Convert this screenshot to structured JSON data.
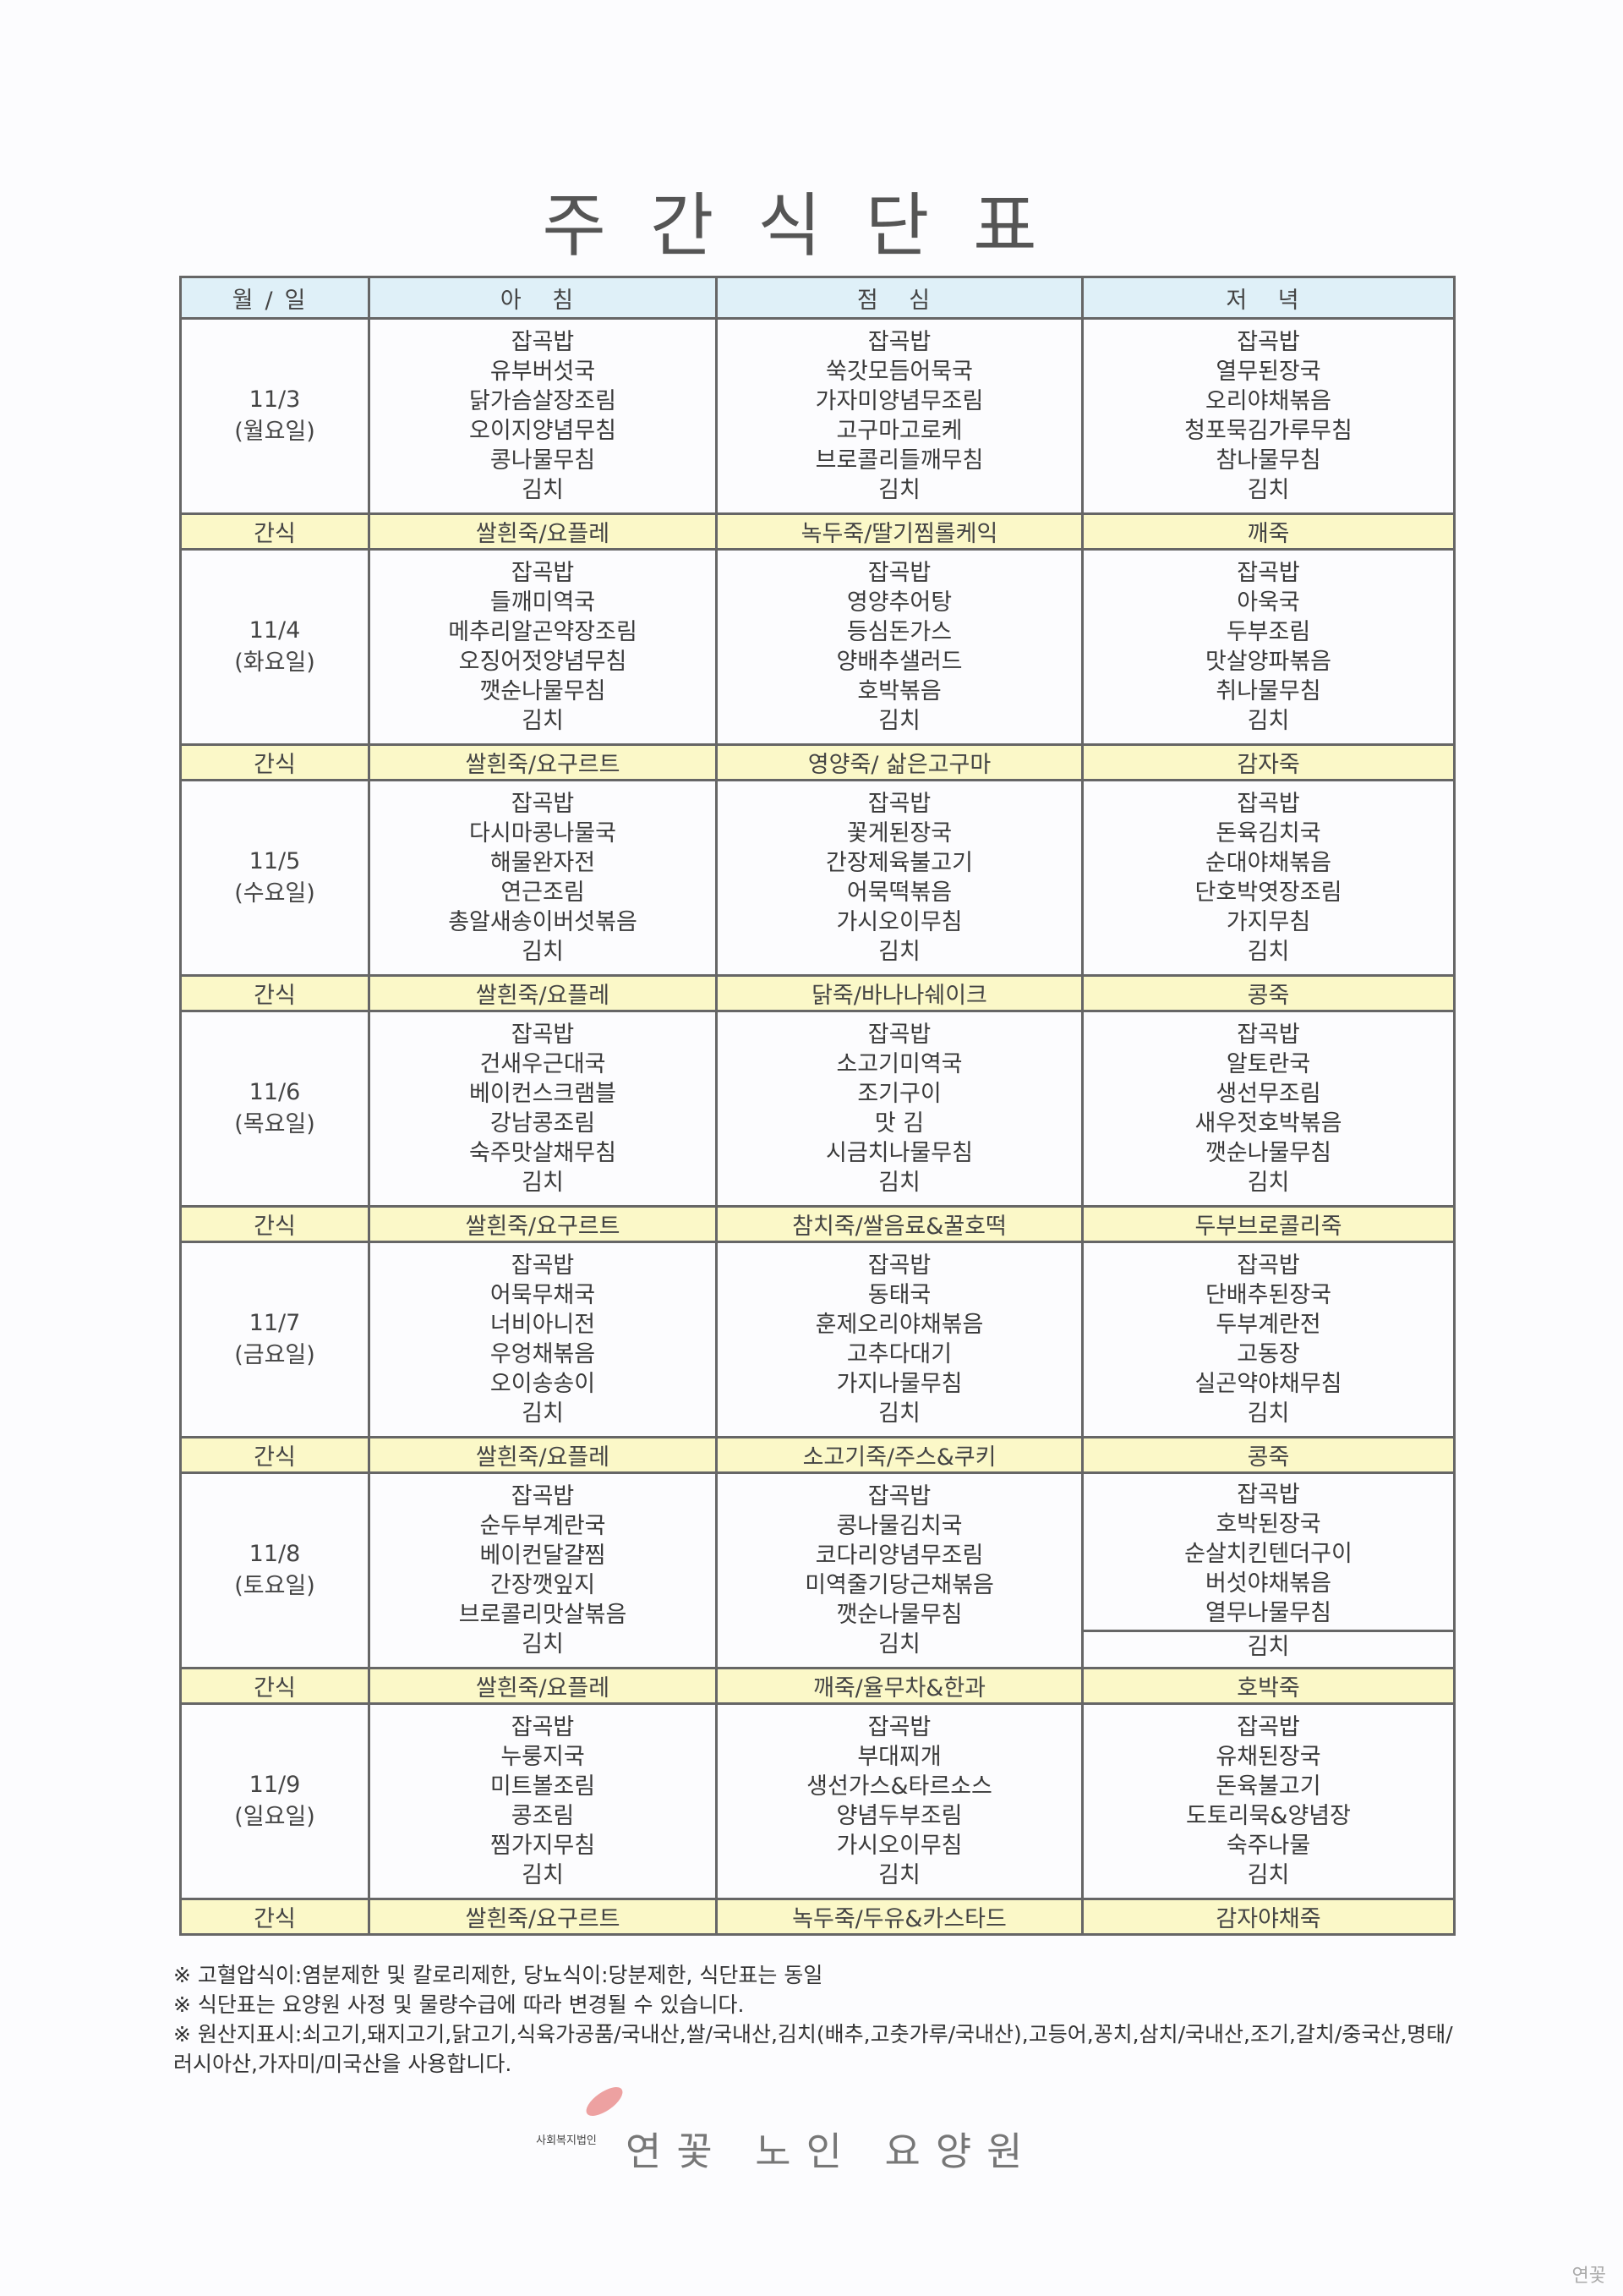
{
  "title": "주간식단표",
  "headers": [
    "월/일",
    "아 침",
    "점 심",
    "저 녁"
  ],
  "snack_label": "간식",
  "days": [
    {
      "date": "11/3",
      "weekday": "(월요일)",
      "breakfast": [
        "잡곡밥",
        "유부버섯국",
        "닭가슴살장조림",
        "오이지양념무침",
        "콩나물무침",
        "김치"
      ],
      "lunch": [
        "잡곡밥",
        "쑥갓모듬어묵국",
        "가자미양념무조림",
        "고구마고로케",
        "브로콜리들깨무침",
        "김치"
      ],
      "dinner": [
        "잡곡밥",
        "열무된장국",
        "오리야채볶음",
        "청포묵김가루무침",
        "참나물무침",
        "김치"
      ],
      "snacks": [
        "쌀흰죽/요플레",
        "녹두죽/딸기찜롤케익",
        "깨죽"
      ]
    },
    {
      "date": "11/4",
      "weekday": "(화요일)",
      "breakfast": [
        "잡곡밥",
        "들깨미역국",
        "메추리알곤약장조림",
        "오징어젓양념무침",
        "깻순나물무침",
        "김치"
      ],
      "lunch": [
        "잡곡밥",
        "영양추어탕",
        "등심돈가스",
        "양배추샐러드",
        "호박볶음",
        "김치"
      ],
      "dinner": [
        "잡곡밥",
        "아욱국",
        "두부조림",
        "맛살양파볶음",
        "취나물무침",
        "김치"
      ],
      "snacks": [
        "쌀흰죽/요구르트",
        "영양죽/ 삶은고구마",
        "감자죽"
      ]
    },
    {
      "date": "11/5",
      "weekday": "(수요일)",
      "breakfast": [
        "잡곡밥",
        "다시마콩나물국",
        "해물완자전",
        "연근조림",
        "총알새송이버섯볶음",
        "김치"
      ],
      "lunch": [
        "잡곡밥",
        "꽃게된장국",
        "간장제육불고기",
        "어묵떡볶음",
        "가시오이무침",
        "김치"
      ],
      "dinner": [
        "잡곡밥",
        "돈육김치국",
        "순대야채볶음",
        "단호박엿장조림",
        "가지무침",
        "김치"
      ],
      "snacks": [
        "쌀흰죽/요플레",
        "닭죽/바나나쉐이크",
        "콩죽"
      ]
    },
    {
      "date": "11/6",
      "weekday": "(목요일)",
      "breakfast": [
        "잡곡밥",
        "건새우근대국",
        "베이컨스크램블",
        "강남콩조림",
        "숙주맛살채무침",
        "김치"
      ],
      "lunch": [
        "잡곡밥",
        "소고기미역국",
        "조기구이",
        "맛 김",
        "시금치나물무침",
        "김치"
      ],
      "dinner": [
        "잡곡밥",
        "알토란국",
        "생선무조림",
        "새우젓호박볶음",
        "깻순나물무침",
        "김치"
      ],
      "snacks": [
        "쌀흰죽/요구르트",
        "참치죽/쌀음료&꿀호떡",
        "두부브로콜리죽"
      ]
    },
    {
      "date": "11/7",
      "weekday": "(금요일)",
      "breakfast": [
        "잡곡밥",
        "어묵무채국",
        "너비아니전",
        "우엉채볶음",
        "오이송송이",
        "김치"
      ],
      "lunch": [
        "잡곡밥",
        "동태국",
        "훈제오리야채볶음",
        "고추다대기",
        "가지나물무침",
        "김치"
      ],
      "dinner": [
        "잡곡밥",
        "단배추된장국",
        "두부계란전",
        "고동장",
        "실곤약야채무침",
        "김치"
      ],
      "snacks": [
        "쌀흰죽/요플레",
        "소고기죽/주스&쿠키",
        "콩죽"
      ]
    },
    {
      "date": "11/8",
      "weekday": "(토요일)",
      "breakfast": [
        "잡곡밥",
        "순두부계란국",
        "베이컨달걀찜",
        "간장깻잎지",
        "브로콜리맛살볶음",
        "김치"
      ],
      "lunch": [
        "잡곡밥",
        "콩나물김치국",
        "코다리양념무조림",
        "미역줄기당근채볶음",
        "깻순나물무침",
        "김치"
      ],
      "dinner": [
        "잡곡밥",
        "호박된장국",
        "순살치킨텐더구이",
        "버섯야채볶음",
        "열무나물무침",
        "김치"
      ],
      "snacks": [
        "쌀흰죽/요플레",
        "깨죽/율무차&한과",
        "호박죽"
      ]
    },
    {
      "date": "11/9",
      "weekday": "(일요일)",
      "breakfast": [
        "잡곡밥",
        "누룽지국",
        "미트볼조림",
        "콩조림",
        "찜가지무침",
        "김치"
      ],
      "lunch": [
        "잡곡밥",
        "부대찌개",
        "생선가스&타르소스",
        "양념두부조림",
        "가시오이무침",
        "김치"
      ],
      "dinner": [
        "잡곡밥",
        "유채된장국",
        "돈육불고기",
        "도토리묵&양념장",
        "숙주나물",
        "김치"
      ],
      "snacks": [
        "쌀흰죽/요구르트",
        "녹두죽/두유&카스타드",
        "감자야채죽"
      ]
    }
  ],
  "notes": [
    "※ 고혈압식이:염분제한 및 칼로리제한, 당뇨식이:당분제한, 식단표는 동일",
    "※ 식단표는 요양원 사정 및 물량수급에 따라 변경될 수 있습니다.",
    "※ 원산지표시:쇠고기,돼지고기,닭고기,식육가공품/국내산,쌀/국내산,김치(배추,고춧가루/국내산),고등어,꽁치,삼치/국내산,조기,갈치/중국산,명태/러시아산,가자미/미국산을 사용합니다."
  ],
  "logo": {
    "org_type": "사회복지법인",
    "name": "연꽃 노인 요양원",
    "accent": "#e98a8a"
  },
  "colors": {
    "header_bg": "#dff0f8",
    "snack_bg": "#fbf8c8"
  }
}
